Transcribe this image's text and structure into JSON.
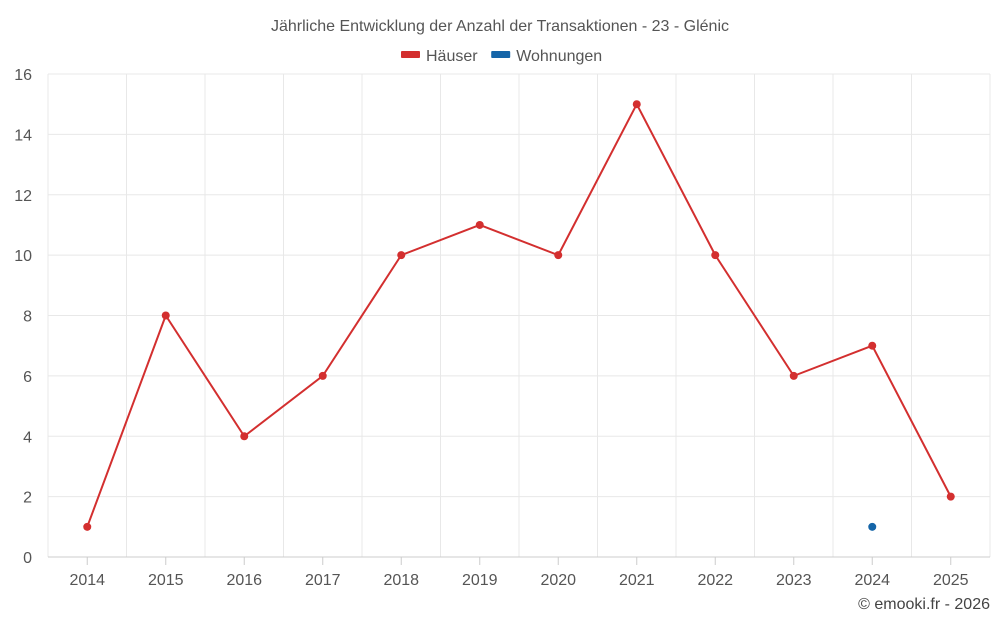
{
  "chart_data": {
    "type": "line",
    "title": "Jährliche Entwicklung der Anzahl der Transaktionen - 23 - Glénic",
    "categories": [
      "2014",
      "2015",
      "2016",
      "2017",
      "2018",
      "2019",
      "2020",
      "2021",
      "2022",
      "2023",
      "2024",
      "2025"
    ],
    "series": [
      {
        "name": "Häuser",
        "color": "#d32f2f",
        "values": [
          1,
          8,
          4,
          6,
          10,
          11,
          10,
          15,
          10,
          6,
          7,
          2
        ]
      },
      {
        "name": "Wohnungen",
        "color": "#1565a8",
        "values": [
          null,
          null,
          null,
          null,
          null,
          null,
          null,
          null,
          null,
          null,
          1,
          null
        ]
      }
    ],
    "ylim": [
      0,
      16
    ],
    "yticks": [
      0,
      2,
      4,
      6,
      8,
      10,
      12,
      14,
      16
    ],
    "grid": true,
    "legend_position": "top-center"
  },
  "credit": "© emooki.fr - 2026"
}
